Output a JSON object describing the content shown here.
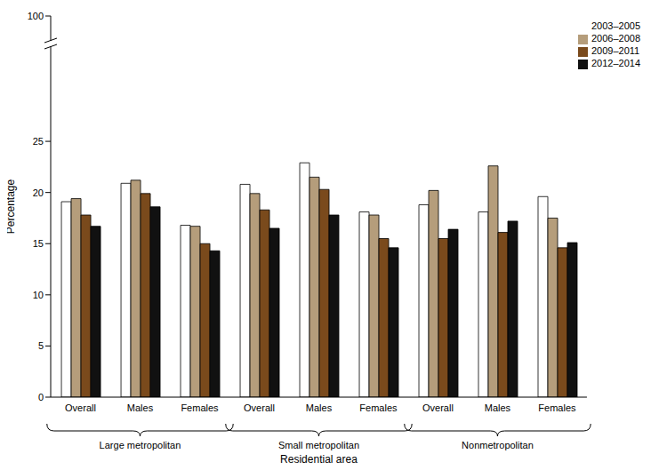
{
  "chart_data": {
    "type": "bar",
    "x_label": "Residential area",
    "y_label": "Percentage",
    "groups": [
      "Large metropolitan",
      "Small metropolitan",
      "Nonmetropolitan"
    ],
    "categories": [
      "Overall",
      "Males",
      "Females",
      "Overall",
      "Males",
      "Females",
      "Overall",
      "Males",
      "Females"
    ],
    "series": [
      {
        "name": "2003–2005",
        "color": "#ffffff",
        "values": [
          19.1,
          20.9,
          16.8,
          20.8,
          22.9,
          18.1,
          18.8,
          18.1,
          19.6
        ]
      },
      {
        "name": "2006–2008",
        "color": "#b59d7b",
        "values": [
          19.4,
          21.2,
          16.7,
          19.9,
          21.5,
          17.8,
          20.2,
          22.6,
          17.5
        ]
      },
      {
        "name": "2009–2011",
        "color": "#7a4a1c",
        "values": [
          17.8,
          19.9,
          15.0,
          18.3,
          20.3,
          15.5,
          15.5,
          16.1,
          14.6
        ]
      },
      {
        "name": "2012–2014",
        "color": "#111111",
        "values": [
          16.7,
          18.6,
          14.3,
          16.5,
          17.8,
          14.6,
          16.4,
          17.2,
          15.1
        ]
      }
    ],
    "ylim": [
      0,
      100
    ],
    "yticks": [
      0,
      5,
      10,
      15,
      20,
      25,
      100
    ],
    "grid": false,
    "legend": "top-right"
  }
}
